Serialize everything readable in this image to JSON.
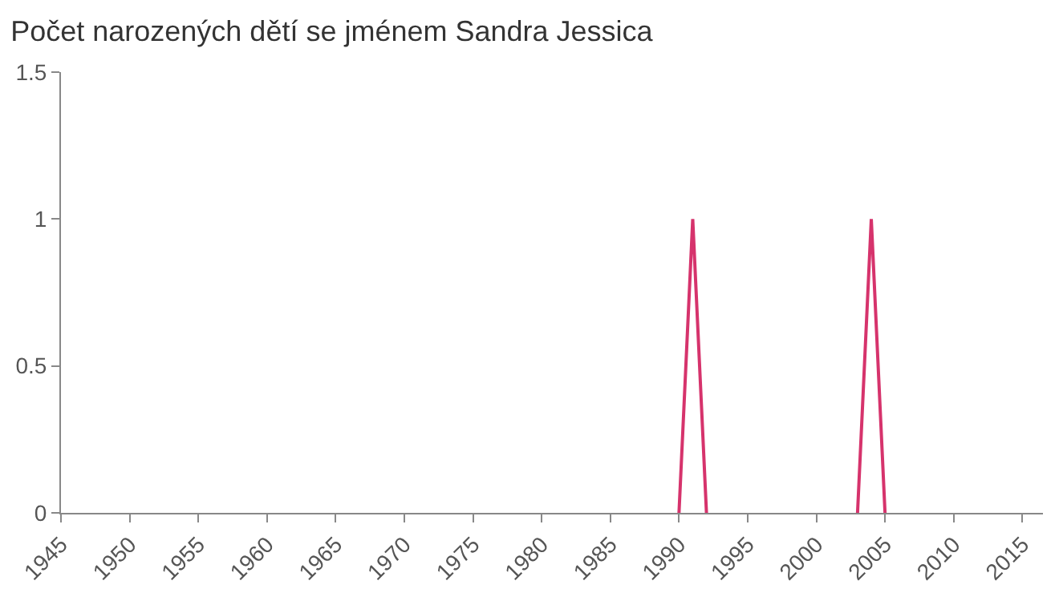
{
  "chart_data": {
    "type": "line",
    "title": "Počet narozených dětí se jménem Sandra Jessica",
    "x": [
      1990,
      1991,
      1992,
      1998,
      2003,
      2004,
      2005
    ],
    "series": [
      {
        "color": "#d6336c",
        "values": [
          0,
          1,
          0,
          null,
          0,
          1,
          0
        ]
      }
    ],
    "xlim": [
      1945,
      2016.5
    ],
    "xticks": [
      1945,
      1950,
      1955,
      1960,
      1965,
      1970,
      1975,
      1980,
      1985,
      1990,
      1995,
      2000,
      2005,
      2010,
      2015
    ],
    "ylim": [
      0,
      1.5
    ],
    "yticks": [
      0,
      0.5,
      1,
      1.5
    ],
    "marker": "none",
    "line_style": "solid"
  }
}
